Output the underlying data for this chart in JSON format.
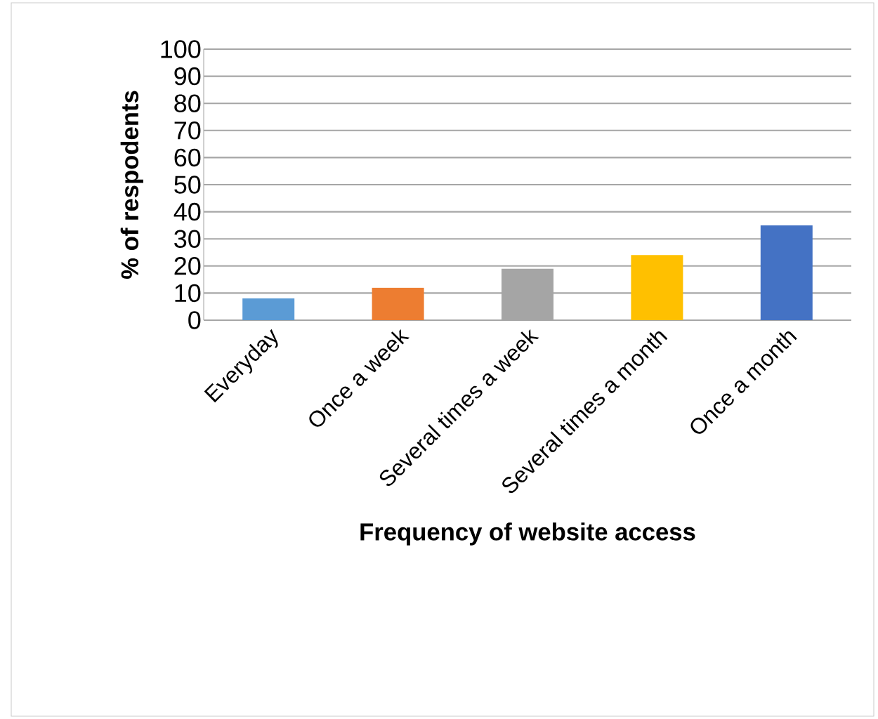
{
  "chart_data": {
    "type": "bar",
    "xlabel": "Frequency of website access",
    "ylabel": "% of respodents",
    "categories": [
      "Everyday",
      "Once a week",
      "Several times a week",
      "Several times a month",
      "Once a month"
    ],
    "values": [
      8,
      12,
      19,
      24,
      35
    ],
    "colors": [
      "#5b9bd5",
      "#ed7d31",
      "#a5a5a5",
      "#ffc000",
      "#4472c4"
    ],
    "ylim": [
      0,
      100
    ],
    "yticks": [
      0,
      10,
      20,
      30,
      40,
      50,
      60,
      70,
      80,
      90,
      100
    ],
    "grid": "y"
  }
}
